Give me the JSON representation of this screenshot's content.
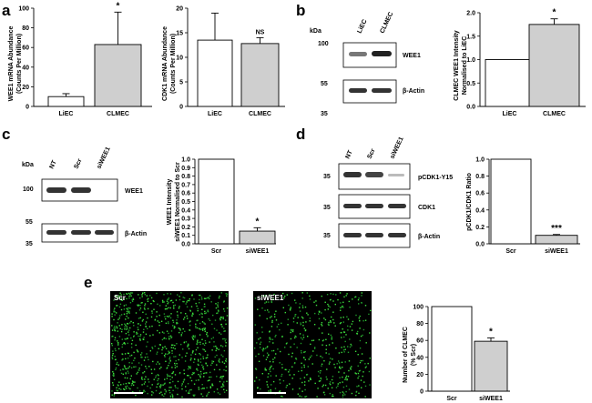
{
  "panels": {
    "a": {
      "label": "a",
      "left_chart": {
        "ylabel1": "WEE1 mRNA Abundance",
        "ylabel2": "(Counts Per Million)",
        "sig": [
          "",
          "*"
        ]
      },
      "right_chart": {
        "ylabel1": "CDK1 mRNA Abundance",
        "ylabel2": "(Counts Per Million)",
        "sig": [
          "",
          "NS"
        ]
      }
    },
    "b": {
      "label": "b",
      "blot": {
        "kda": "kDa",
        "lanes": [
          "LiEC",
          "CLMEC"
        ],
        "markers": [
          "100",
          "55",
          "35"
        ],
        "bands": [
          "WEE1",
          "β-Actin"
        ]
      },
      "chart": {
        "ylabel1": "CLMEC WEE1 Intensity",
        "ylabel2": "Normalised to LiEC",
        "sig": [
          "",
          "*"
        ]
      }
    },
    "c": {
      "label": "c",
      "blot": {
        "kda": "kDa",
        "lanes": [
          "NT",
          "Scr",
          "siWEE1"
        ],
        "markers": [
          "100",
          "55",
          "35"
        ],
        "bands": [
          "WEE1",
          "β-Actin"
        ]
      },
      "chart": {
        "ylabel1": "WEE1 Intensity",
        "ylabel2": "siWEE1 Normalised to Scr",
        "sig": [
          "",
          "*"
        ]
      }
    },
    "d": {
      "label": "d",
      "blot": {
        "lanes": [
          "NT",
          "Scr",
          "siWEE1"
        ],
        "markers": [
          "35",
          "35",
          "35"
        ],
        "bands": [
          "pCDK1-Y15",
          "CDK1",
          "β-Actin"
        ]
      },
      "chart": {
        "ylabel1": "pCDK1/CDK1 Ratio",
        "ylabel2": "",
        "sig": [
          "",
          "***"
        ]
      }
    },
    "e": {
      "label": "e",
      "images": [
        "Scr",
        "siWEE1"
      ],
      "chart": {
        "ylabel1": "Number of CLMEC",
        "ylabel2": "(% Scr)",
        "sig": [
          "",
          "*"
        ]
      }
    }
  },
  "chart_data": [
    {
      "id": "a1",
      "type": "bar",
      "categories": [
        "LiEC",
        "CLMEC"
      ],
      "values": [
        10,
        63
      ],
      "errors": [
        3,
        33
      ],
      "ylim": [
        0,
        100
      ],
      "ticks": [
        0,
        20,
        40,
        60,
        80,
        100
      ],
      "tick_labels": [
        "0",
        "20",
        "40",
        "60",
        "80",
        "100"
      ],
      "colors": [
        "#ffffff",
        "#cfcfcf"
      ]
    },
    {
      "id": "a2",
      "type": "bar",
      "categories": [
        "LiEC",
        "CLMEC"
      ],
      "values": [
        13.5,
        12.8
      ],
      "errors": [
        5.5,
        1.2
      ],
      "ylim": [
        0,
        20
      ],
      "ticks": [
        0,
        5,
        10,
        15,
        20
      ],
      "tick_labels": [
        "0",
        "5",
        "10",
        "15",
        "20"
      ],
      "colors": [
        "#ffffff",
        "#cfcfcf"
      ]
    },
    {
      "id": "b",
      "type": "bar",
      "categories": [
        "LiEC",
        "CLMEC"
      ],
      "values": [
        1.0,
        1.75
      ],
      "errors": [
        0,
        0.12
      ],
      "ylim": [
        0,
        2.0
      ],
      "ticks": [
        0,
        0.5,
        1.0,
        1.5,
        2.0
      ],
      "tick_labels": [
        "0.0",
        "0.5",
        "1.0",
        "1.5",
        "2.0"
      ],
      "colors": [
        "#ffffff",
        "#cfcfcf"
      ]
    },
    {
      "id": "c",
      "type": "bar",
      "categories": [
        "Scr",
        "siWEE1"
      ],
      "values": [
        1.0,
        0.15
      ],
      "errors": [
        0,
        0.04
      ],
      "ylim": [
        0,
        1.0
      ],
      "ticks": [
        0,
        0.1,
        0.2,
        0.3,
        0.4,
        0.5,
        0.6,
        0.7,
        0.8,
        0.9,
        1.0
      ],
      "tick_labels": [
        "0.0",
        "0.1",
        "0.2",
        "0.3",
        "0.4",
        "0.5",
        "0.6",
        "0.7",
        "0.8",
        "0.9",
        "1.0"
      ],
      "colors": [
        "#ffffff",
        "#cfcfcf"
      ]
    },
    {
      "id": "d",
      "type": "bar",
      "categories": [
        "Scr",
        "siWEE1"
      ],
      "values": [
        1.0,
        0.1
      ],
      "errors": [
        0,
        0.01
      ],
      "ylim": [
        0,
        1.0
      ],
      "ticks": [
        0,
        0.2,
        0.4,
        0.6,
        0.8,
        1.0
      ],
      "tick_labels": [
        "0.0",
        "0.2",
        "0.4",
        "0.6",
        "0.8",
        "1.0"
      ],
      "colors": [
        "#ffffff",
        "#cfcfcf"
      ]
    },
    {
      "id": "e",
      "type": "bar",
      "categories": [
        "Scr",
        "siWEE1"
      ],
      "values": [
        100,
        59
      ],
      "errors": [
        0,
        4
      ],
      "ylim": [
        0,
        100
      ],
      "ticks": [
        0,
        20,
        40,
        60,
        80,
        100
      ],
      "tick_labels": [
        "0",
        "20",
        "40",
        "60",
        "80",
        "100"
      ],
      "colors": [
        "#ffffff",
        "#cfcfcf"
      ]
    }
  ]
}
